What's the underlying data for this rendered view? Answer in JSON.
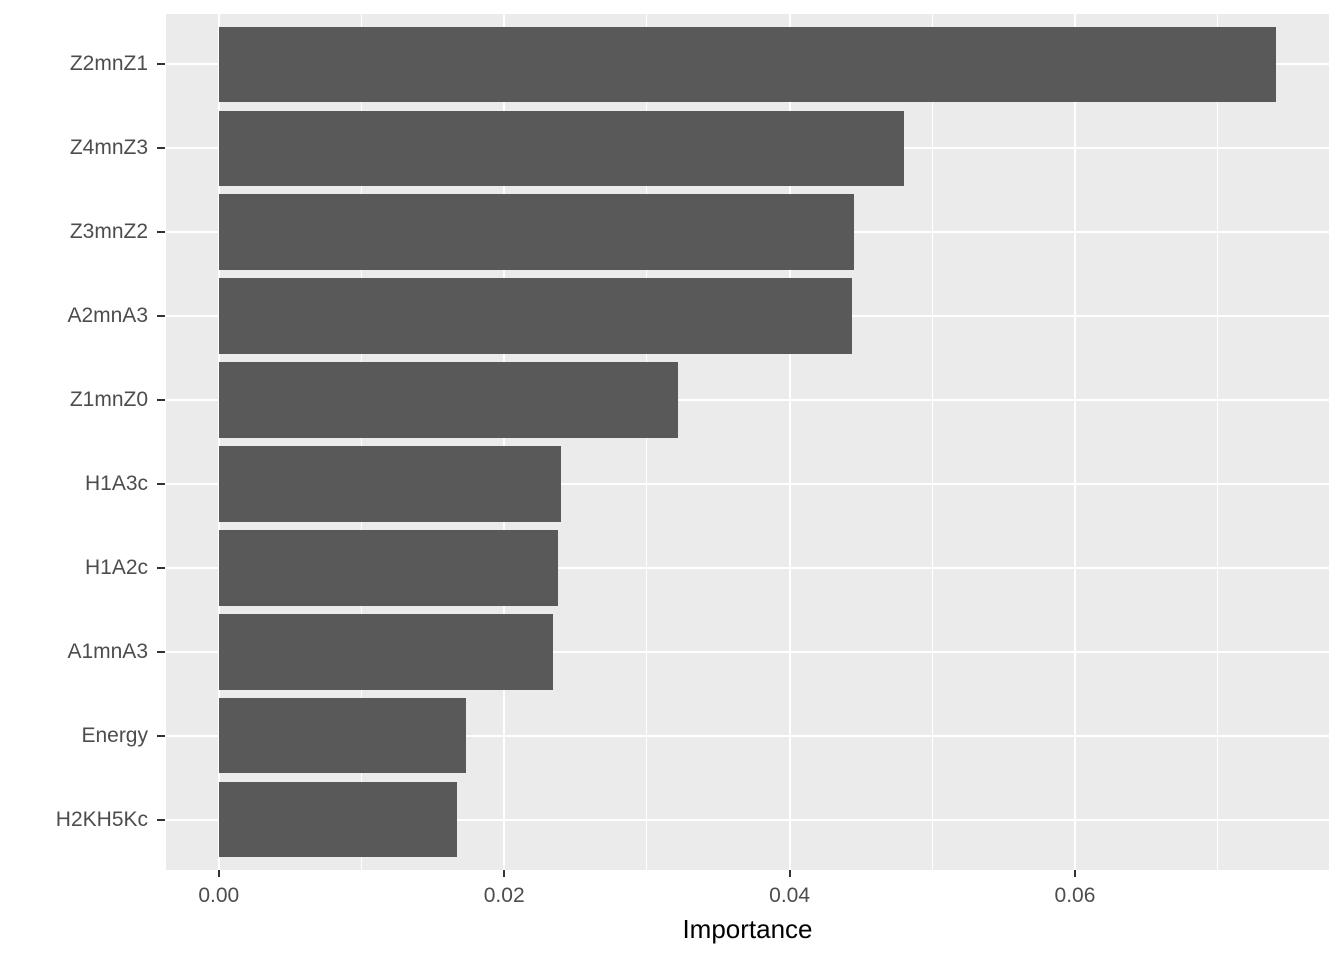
{
  "chart_data": {
    "type": "bar",
    "orientation": "horizontal",
    "title": "",
    "xlabel": "Importance",
    "ylabel": "",
    "categories_top_to_bottom": [
      "Z2mnZ1",
      "Z4mnZ3",
      "Z3mnZ2",
      "A2mnA3",
      "Z1mnZ0",
      "H1A3c",
      "H1A2c",
      "A1mnA3",
      "Energy",
      "H2KH5Kc"
    ],
    "values": [
      0.0741,
      0.048,
      0.0445,
      0.0444,
      0.0322,
      0.024,
      0.0238,
      0.0234,
      0.0173,
      0.0167
    ],
    "xlim": [
      -0.0037,
      0.0778
    ],
    "x_major_ticks": [
      0.0,
      0.02,
      0.04,
      0.06
    ],
    "x_tick_labels": [
      "0.00",
      "0.02",
      "0.04",
      "0.06"
    ],
    "x_minor_gridlines": [
      0.01,
      0.03,
      0.05,
      0.07
    ],
    "grid": true,
    "legend_position": "none"
  },
  "style": {
    "page_background": "#FFFFFF",
    "panel_background": "#EBEBEB",
    "bar_fill": "#595959",
    "gridline_color": "#FFFFFF",
    "axis_text_color": "#4D4D4D",
    "axis_title_color": "#000000",
    "tick_mark_color": "#333333"
  }
}
